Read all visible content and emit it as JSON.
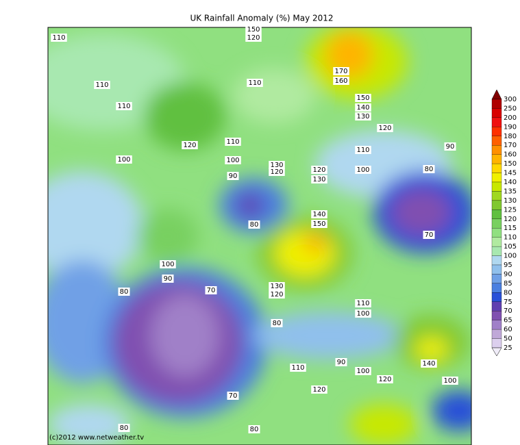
{
  "title": "UK Rainfall Anomaly (%) May 2012",
  "credit": "(c)2012 www.netweather.tv",
  "colorbar": {
    "labels": [
      "300",
      "250",
      "200",
      "190",
      "180",
      "170",
      "160",
      "150",
      "145",
      "140",
      "135",
      "130",
      "125",
      "120",
      "115",
      "110",
      "105",
      "100",
      "95",
      "90",
      "85",
      "80",
      "75",
      "70",
      "65",
      "60",
      "50",
      "25"
    ],
    "colors": [
      "#b00000",
      "#d80000",
      "#f01010",
      "#ff3000",
      "#ff6000",
      "#ff9000",
      "#ffb400",
      "#ffd800",
      "#f0f000",
      "#c8e800",
      "#a0d820",
      "#80c830",
      "#60c040",
      "#78d060",
      "#90e080",
      "#b0eaa0",
      "#a8e8b0",
      "#b0d8f0",
      "#90c0ec",
      "#6fa0e6",
      "#4a7fe0",
      "#2850d8",
      "#6040b0",
      "#8050b0",
      "#a080c8",
      "#c0a8d8",
      "#dccfee"
    ],
    "top_color": "#800000",
    "bottom_color": "#f0ecf8"
  },
  "contour_labels": [
    "110",
    "150",
    "120",
    "170",
    "160",
    "110",
    "110",
    "110",
    "150",
    "140",
    "130",
    "120",
    "120",
    "110",
    "110",
    "90",
    "100",
    "100",
    "130",
    "120",
    "120",
    "130",
    "100",
    "80",
    "90",
    "80",
    "140",
    "150",
    "70",
    "100",
    "90",
    "80",
    "70",
    "130",
    "120",
    "110",
    "100",
    "80",
    "90",
    "140",
    "110",
    "100",
    "120",
    "100",
    "120",
    "70",
    "80",
    "80"
  ]
}
